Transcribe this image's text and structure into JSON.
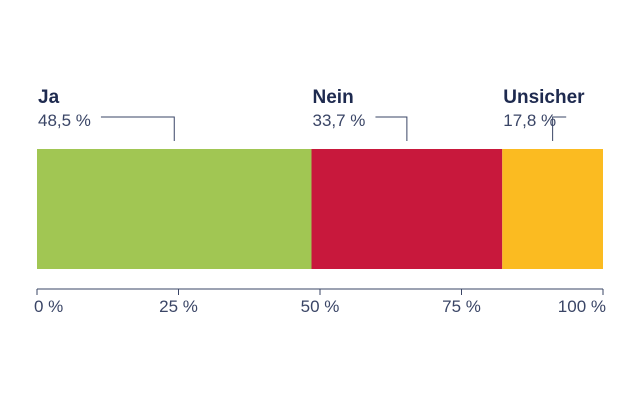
{
  "chart_data": {
    "type": "bar",
    "orientation": "horizontal-stacked",
    "categories": [
      "Ja",
      "Nein",
      "Unsicher"
    ],
    "values": [
      48.5,
      33.7,
      17.8
    ],
    "value_labels": [
      "48,5 %",
      "33,7 %",
      "17,8 %"
    ],
    "colors": [
      "#a1c653",
      "#c8183c",
      "#fbbb21"
    ],
    "xlim": [
      0,
      100
    ],
    "x_ticks": [
      0,
      25,
      50,
      75,
      100
    ],
    "x_tick_labels": [
      "0 %",
      "25 %",
      "50 %",
      "75 %",
      "100 %"
    ],
    "title": "",
    "xlabel": "",
    "ylabel": "",
    "grid": false,
    "legend": "labels above segments"
  }
}
